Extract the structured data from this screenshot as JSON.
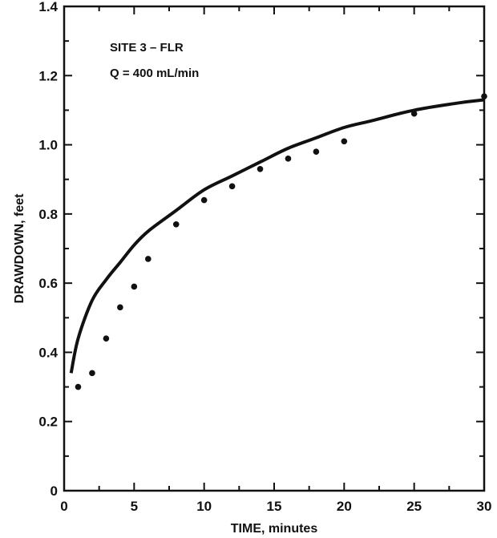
{
  "chart_data": {
    "type": "scatter",
    "xlabel": "TIME, minutes",
    "ylabel": "DRAWDOWN, feet",
    "xlim": [
      0,
      30
    ],
    "ylim": [
      0,
      1.4
    ],
    "x_ticks": [
      "0",
      "5",
      "10",
      "15",
      "20",
      "25",
      "30"
    ],
    "y_ticks": [
      "0",
      "0.2",
      "0.4",
      "0.6",
      "0.8",
      "1.0",
      "1.2",
      "1.4"
    ],
    "grid": false,
    "annotations": [
      "SITE 3 – FLR",
      "Q = 400 mL/min"
    ],
    "series": [
      {
        "type": "scatter",
        "x": [
          1,
          2,
          3,
          4,
          5,
          6,
          8,
          10,
          12,
          14,
          16,
          18,
          20,
          25,
          30
        ],
        "y": [
          0.3,
          0.34,
          0.44,
          0.53,
          0.59,
          0.67,
          0.77,
          0.84,
          0.88,
          0.93,
          0.96,
          0.98,
          1.01,
          1.09,
          1.14
        ]
      },
      {
        "type": "line",
        "x": [
          0.5,
          1,
          2,
          3,
          4,
          5,
          6,
          8,
          10,
          12,
          14,
          16,
          18,
          20,
          22,
          25,
          28,
          30
        ],
        "y": [
          0.34,
          0.44,
          0.55,
          0.61,
          0.66,
          0.71,
          0.75,
          0.81,
          0.87,
          0.91,
          0.95,
          0.99,
          1.02,
          1.05,
          1.07,
          1.1,
          1.12,
          1.13
        ]
      }
    ]
  }
}
